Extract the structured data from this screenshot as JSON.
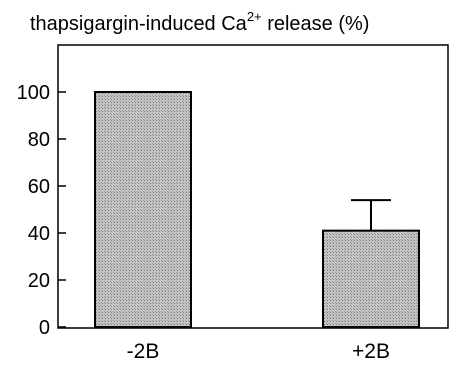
{
  "chart_data": {
    "type": "bar",
    "title_main": "thapsigargin-induced Ca",
    "title_sup": "2+",
    "title_tail": " release (%)",
    "categories": [
      "-2B",
      "+2B"
    ],
    "values": [
      100,
      41
    ],
    "errors": [
      null,
      13
    ],
    "ylim": [
      0,
      120
    ],
    "yticks": [
      0,
      20,
      40,
      60,
      80,
      100
    ],
    "ytick_labels": [
      "0",
      "20",
      "40",
      "60",
      "80",
      "100"
    ],
    "grid": false,
    "bar_fill": "#c8c8c8",
    "bar_edge": "#000000"
  }
}
